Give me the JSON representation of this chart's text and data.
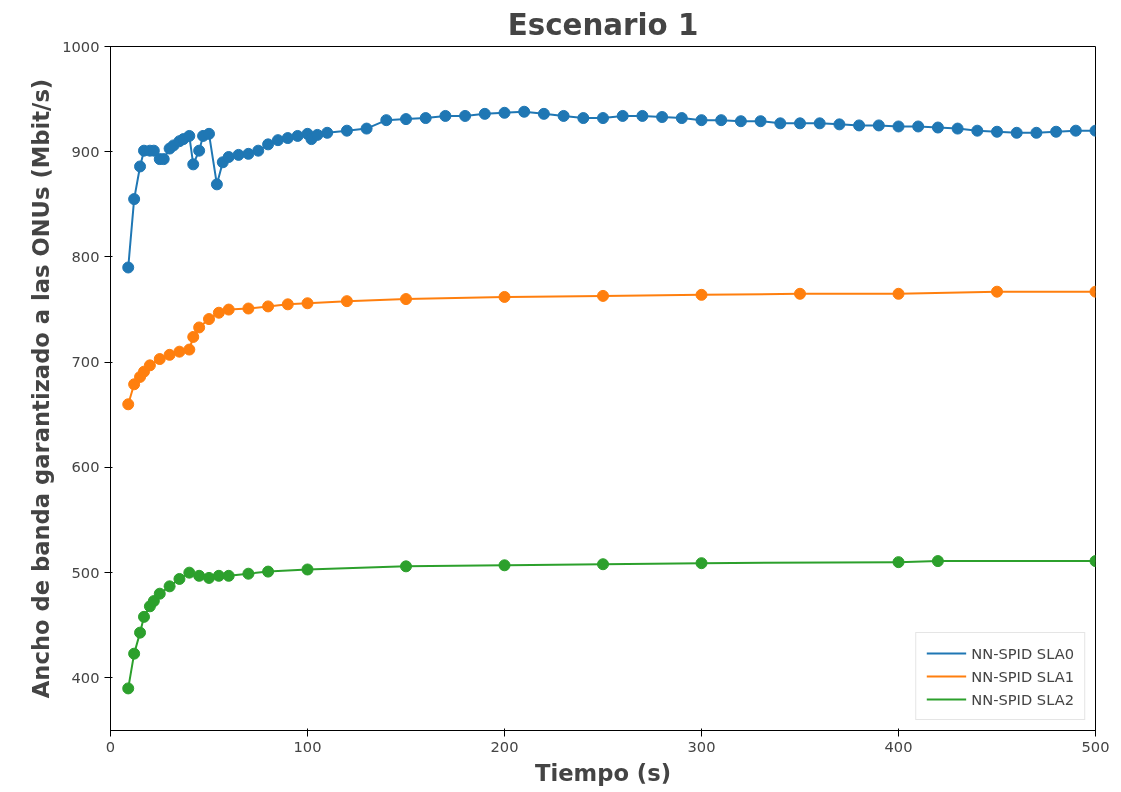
{
  "chart_data": {
    "type": "line",
    "title": "Escenario 1",
    "xlabel": "Tiempo (s)",
    "ylabel": "Ancho de banda garantizado a las ONUs (Mbit/s)",
    "xlim": [
      0,
      500
    ],
    "xticks": [
      0,
      100,
      200,
      300,
      400,
      500
    ],
    "ylim": [
      350,
      1000
    ],
    "yticks": [
      400,
      500,
      600,
      700,
      800,
      900,
      1000
    ],
    "grid": false,
    "legend": "bottom right",
    "marker": "circle",
    "line_style": "solid",
    "series": [
      {
        "name": "NN-SPID SLA0",
        "color": "#1f77b4",
        "x": [
          9,
          12,
          15,
          17,
          20,
          22,
          25,
          27,
          30,
          32,
          35,
          37,
          40,
          42,
          45,
          47,
          50,
          54,
          57,
          60,
          65,
          70,
          75,
          80,
          85,
          90,
          95,
          100,
          102,
          105,
          110,
          120,
          130,
          140,
          150,
          160,
          170,
          180,
          190,
          200,
          210,
          220,
          230,
          240,
          250,
          260,
          270,
          280,
          290,
          300,
          310,
          320,
          330,
          340,
          350,
          360,
          370,
          380,
          390,
          400,
          410,
          420,
          430,
          440,
          450,
          460,
          470,
          480,
          490,
          500
        ],
        "values": [
          790,
          855,
          886,
          901,
          901,
          901,
          893,
          893,
          903,
          906,
          910,
          912,
          915,
          888,
          901,
          915,
          917,
          869,
          890,
          895,
          897,
          898,
          901,
          907,
          911,
          913,
          915,
          917,
          912,
          916,
          918,
          920,
          922,
          930,
          931,
          932,
          934,
          934,
          936,
          937,
          938,
          936,
          934,
          932,
          932,
          934,
          934,
          933,
          932,
          930,
          930,
          929,
          929,
          927,
          927,
          927,
          926,
          925,
          925,
          924,
          924,
          923,
          922,
          920,
          919,
          918,
          918,
          919,
          920,
          920
        ]
      },
      {
        "name": "NN-SPID SLA1",
        "color": "#ff7f0e",
        "x": [
          9,
          12,
          15,
          17,
          20,
          25,
          30,
          35,
          40,
          42,
          45,
          50,
          55,
          60,
          70,
          80,
          90,
          100,
          120,
          150,
          200,
          250,
          300,
          350,
          400,
          450,
          500
        ],
        "values": [
          660,
          679,
          686,
          691,
          697,
          703,
          707,
          710,
          712,
          724,
          733,
          741,
          747,
          750,
          751,
          753,
          755,
          756,
          758,
          760,
          762,
          763,
          764,
          765,
          765,
          767,
          767
        ]
      },
      {
        "name": "NN-SPID SLA2",
        "color": "#2ca02c",
        "x": [
          9,
          12,
          15,
          17,
          20,
          22,
          25,
          30,
          35,
          40,
          45,
          50,
          55,
          60,
          70,
          80,
          100,
          150,
          200,
          250,
          300,
          400,
          420,
          500
        ],
        "values": [
          390,
          423,
          443,
          458,
          468,
          473,
          480,
          487,
          494,
          500,
          497,
          495,
          497,
          497,
          499,
          501,
          503,
          506,
          507,
          508,
          509,
          510,
          511,
          511
        ]
      }
    ]
  }
}
